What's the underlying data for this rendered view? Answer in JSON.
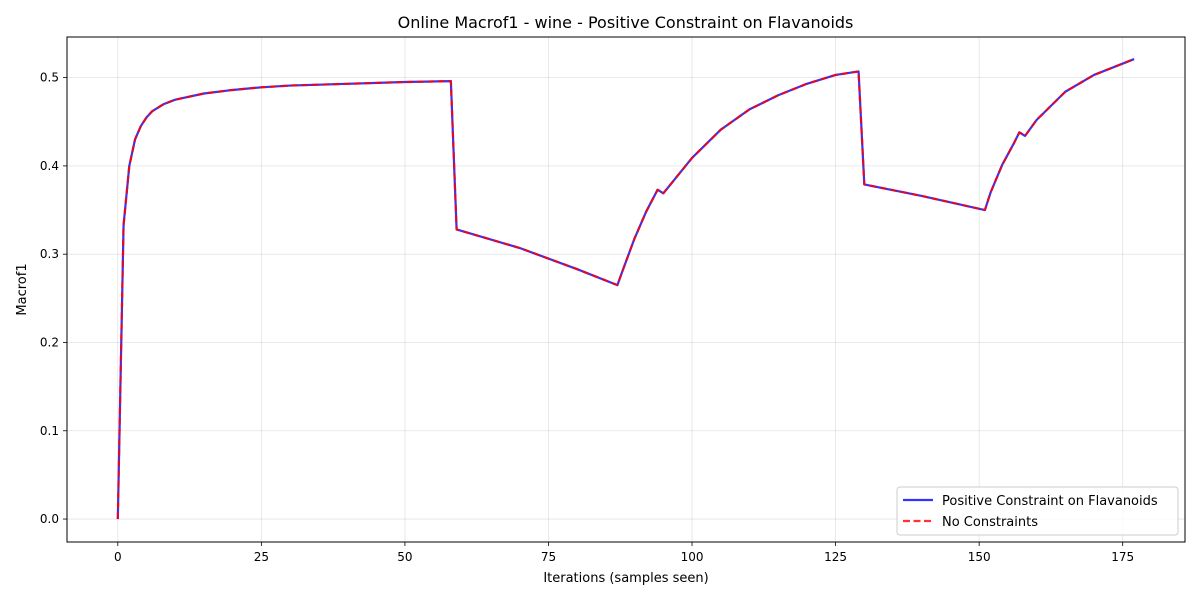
{
  "chart_data": {
    "type": "line",
    "title": "Online Macrof1 - wine - Positive Constraint on Flavanoids",
    "xlabel": "Iterations (samples seen)",
    "ylabel": "Macrof1",
    "xlim": [
      -8.85,
      185.85
    ],
    "ylim": [
      -0.026,
      0.546
    ],
    "xticks": [
      0,
      25,
      50,
      75,
      100,
      125,
      150,
      175
    ],
    "yticks": [
      0.0,
      0.1,
      0.2,
      0.3,
      0.4,
      0.5
    ],
    "ytick_labels": [
      "0.0",
      "0.1",
      "0.2",
      "0.3",
      "0.4",
      "0.5"
    ],
    "grid": true,
    "legend_position": "lower-right",
    "series": [
      {
        "name": "Positive Constraint on Flavanoids",
        "color": "#0000ff",
        "style": "solid",
        "x": [
          0,
          1,
          2,
          3,
          4,
          5,
          6,
          8,
          10,
          15,
          20,
          25,
          30,
          40,
          50,
          58,
          59,
          70,
          80,
          87,
          88,
          90,
          92,
          94,
          95,
          97,
          100,
          105,
          110,
          115,
          120,
          125,
          129,
          130,
          140,
          151,
          152,
          154,
          156,
          157,
          158,
          160,
          165,
          170,
          177
        ],
        "y": [
          0.0,
          0.333,
          0.4,
          0.43,
          0.445,
          0.455,
          0.462,
          0.47,
          0.475,
          0.482,
          0.486,
          0.489,
          0.491,
          0.493,
          0.495,
          0.496,
          0.328,
          0.307,
          0.283,
          0.265,
          0.283,
          0.318,
          0.348,
          0.373,
          0.369,
          0.385,
          0.409,
          0.441,
          0.464,
          0.48,
          0.493,
          0.503,
          0.507,
          0.379,
          0.366,
          0.35,
          0.37,
          0.401,
          0.425,
          0.438,
          0.434,
          0.452,
          0.484,
          0.503,
          0.521
        ]
      },
      {
        "name": "No Constraints",
        "color": "#ff0000",
        "style": "dashed",
        "x": [
          0,
          1,
          2,
          3,
          4,
          5,
          6,
          8,
          10,
          15,
          20,
          25,
          30,
          40,
          50,
          58,
          59,
          70,
          80,
          87,
          88,
          90,
          92,
          94,
          95,
          97,
          100,
          105,
          110,
          115,
          120,
          125,
          129,
          130,
          140,
          151,
          152,
          154,
          156,
          157,
          158,
          160,
          165,
          170,
          177
        ],
        "y": [
          0.0,
          0.333,
          0.4,
          0.43,
          0.445,
          0.455,
          0.462,
          0.47,
          0.475,
          0.482,
          0.486,
          0.489,
          0.491,
          0.493,
          0.495,
          0.496,
          0.328,
          0.307,
          0.283,
          0.265,
          0.283,
          0.318,
          0.348,
          0.373,
          0.369,
          0.385,
          0.409,
          0.441,
          0.464,
          0.48,
          0.493,
          0.503,
          0.507,
          0.379,
          0.366,
          0.35,
          0.37,
          0.401,
          0.425,
          0.438,
          0.434,
          0.452,
          0.484,
          0.503,
          0.521
        ]
      }
    ]
  }
}
